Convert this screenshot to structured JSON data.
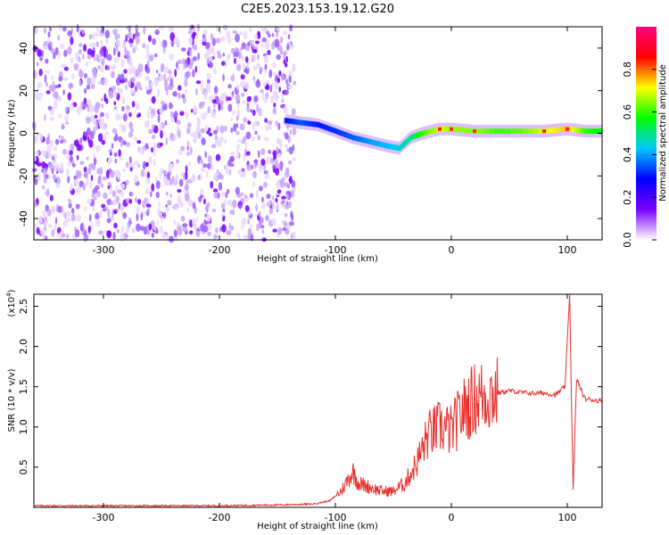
{
  "title": "C2E5.2023.153.19.12.G20",
  "chart_data": [
    {
      "type": "heatmap",
      "xlabel": "Height of straight line (km)",
      "ylabel": "Frequency (Hz)",
      "xlim": [
        -360,
        130
      ],
      "ylim": [
        -50,
        50
      ],
      "x_ticks": [
        -300,
        -200,
        -100,
        0,
        100
      ],
      "x_tick_labels": [
        "-300",
        "-200",
        "-100",
        "0",
        "100"
      ],
      "y_ticks": [
        -40,
        -20,
        0,
        20,
        40
      ],
      "y_tick_labels": [
        "-40",
        "-20",
        "0",
        "20",
        "40"
      ],
      "colorbar": {
        "label": "Normalized spectral amplitude",
        "range": [
          0.0,
          1.0
        ],
        "ticks": [
          0.0,
          0.2,
          0.4,
          0.6,
          0.8
        ],
        "tick_labels": [
          "0.0",
          "0.2",
          "0.4",
          "0.6",
          "0.8"
        ],
        "colormap": [
          "#ffffff",
          "#7a00ff",
          "#0000ff",
          "#00c8ff",
          "#00ff00",
          "#ffff00",
          "#ff0000",
          "#ff0080"
        ]
      },
      "noise_region": {
        "x": [
          -360,
          -135
        ],
        "freq_range": [
          -50,
          50
        ],
        "amplitude": 0.15
      },
      "signal_trace": [
        {
          "x": -143,
          "f": 6,
          "a": 0.3
        },
        {
          "x": -130,
          "f": 5,
          "a": 0.35
        },
        {
          "x": -115,
          "f": 4,
          "a": 0.3
        },
        {
          "x": -100,
          "f": 1,
          "a": 0.32
        },
        {
          "x": -85,
          "f": -2,
          "a": 0.35
        },
        {
          "x": -70,
          "f": -4,
          "a": 0.4
        },
        {
          "x": -55,
          "f": -6,
          "a": 0.42
        },
        {
          "x": -45,
          "f": -7,
          "a": 0.45
        },
        {
          "x": -35,
          "f": -2,
          "a": 0.5
        },
        {
          "x": -25,
          "f": 0,
          "a": 0.6
        },
        {
          "x": -10,
          "f": 2,
          "a": 0.7
        },
        {
          "x": 0,
          "f": 2,
          "a": 0.65
        },
        {
          "x": 20,
          "f": 1,
          "a": 0.65
        },
        {
          "x": 40,
          "f": 1,
          "a": 0.6
        },
        {
          "x": 60,
          "f": 1,
          "a": 0.62
        },
        {
          "x": 80,
          "f": 1,
          "a": 0.7
        },
        {
          "x": 100,
          "f": 2,
          "a": 0.75
        },
        {
          "x": 115,
          "f": 1,
          "a": 0.6
        },
        {
          "x": 130,
          "f": 1,
          "a": 0.55
        }
      ]
    },
    {
      "type": "line",
      "xlabel": "Height of straight line (km)",
      "ylabel": "SNR (10 * v/v)",
      "y_multiplier_label": "(x10",
      "y_multiplier_exponent": "4",
      "y_multiplier_close": ")",
      "xlim": [
        -360,
        130
      ],
      "ylim": [
        0,
        2.65
      ],
      "x_ticks": [
        -300,
        -200,
        -100,
        0,
        100
      ],
      "x_tick_labels": [
        "-300",
        "-200",
        "-100",
        "0",
        "100"
      ],
      "y_ticks": [
        0.5,
        1.0,
        1.5,
        2.0,
        2.5
      ],
      "y_tick_labels": [
        "0.5",
        "1.0",
        "1.5",
        "2.0",
        "2.5"
      ],
      "series": [
        {
          "color": "#e8312e",
          "points": [
            [
              -360,
              0.02
            ],
            [
              -300,
              0.02
            ],
            [
              -250,
              0.02
            ],
            [
              -200,
              0.02
            ],
            [
              -150,
              0.03
            ],
            [
              -120,
              0.04
            ],
            [
              -105,
              0.08
            ],
            [
              -95,
              0.2
            ],
            [
              -85,
              0.45
            ],
            [
              -80,
              0.3
            ],
            [
              -70,
              0.25
            ],
            [
              -60,
              0.2
            ],
            [
              -50,
              0.2
            ],
            [
              -40,
              0.3
            ],
            [
              -30,
              0.55
            ],
            [
              -20,
              0.9
            ],
            [
              -10,
              1.0
            ],
            [
              0,
              0.95
            ],
            [
              10,
              1.2
            ],
            [
              20,
              1.35
            ],
            [
              30,
              1.4
            ],
            [
              40,
              1.42
            ],
            [
              50,
              1.45
            ],
            [
              60,
              1.43
            ],
            [
              70,
              1.42
            ],
            [
              80,
              1.42
            ],
            [
              90,
              1.4
            ],
            [
              98,
              1.5
            ],
            [
              102,
              2.65
            ],
            [
              105,
              0.2
            ],
            [
              108,
              1.6
            ],
            [
              115,
              1.35
            ],
            [
              130,
              1.32
            ]
          ]
        }
      ]
    }
  ]
}
